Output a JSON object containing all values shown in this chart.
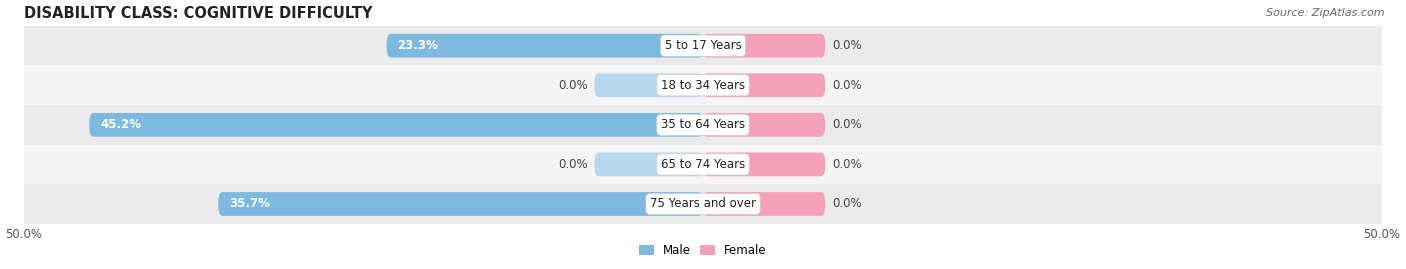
{
  "title": "DISABILITY CLASS: COGNITIVE DIFFICULTY",
  "source": "Source: ZipAtlas.com",
  "categories": [
    "5 to 17 Years",
    "18 to 34 Years",
    "35 to 64 Years",
    "65 to 74 Years",
    "75 Years and over"
  ],
  "male_values": [
    23.3,
    0.0,
    45.2,
    0.0,
    35.7
  ],
  "female_values": [
    0.0,
    0.0,
    0.0,
    0.0,
    0.0
  ],
  "male_color": "#7db8e0",
  "male_stub_color": "#b8d8f0",
  "female_color": "#f4a0b8",
  "male_label": "Male",
  "female_label": "Female",
  "xlim": [
    -50,
    50
  ],
  "bar_height": 0.6,
  "stub_size": 8.0,
  "female_stub_size": 9.0,
  "row_bg_colors": [
    "#ebebeb",
    "#f4f4f4"
  ],
  "title_fontsize": 10.5,
  "label_fontsize": 8.5,
  "tick_fontsize": 8.5,
  "source_fontsize": 8,
  "cat_label_fontsize": 8.5
}
